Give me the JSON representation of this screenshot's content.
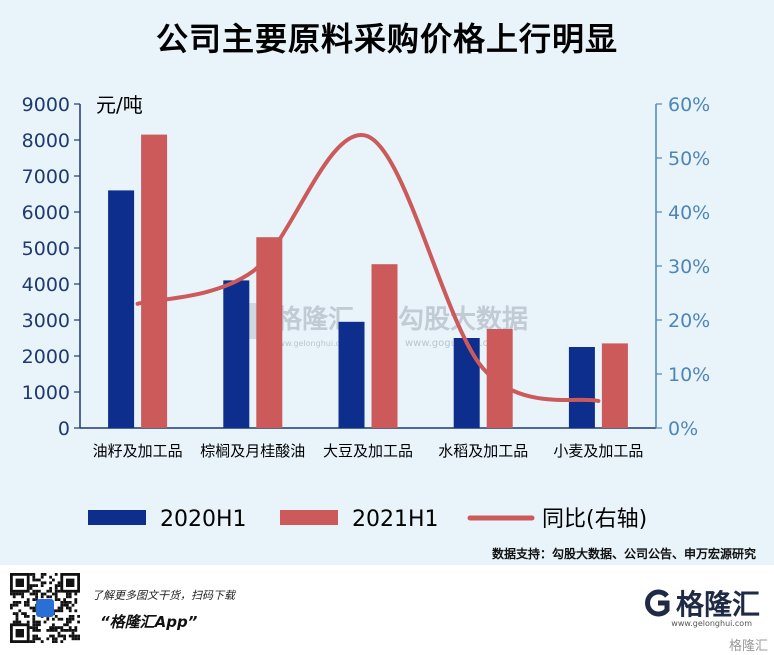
{
  "title": "公司主要原料采购价格上行明显",
  "source": "数据支持：勾股大数据、公司公告、申万宏源研究",
  "watermark": {
    "brand1": "格隆汇",
    "url1": "www.gelonghui.com",
    "brand2": "勾股大数据",
    "url2": "www.gogudata.com"
  },
  "footer": {
    "promo_line": "了解更多图文干货，扫码下载",
    "app_name": "“格隆汇App”",
    "brand_name": "格隆汇",
    "brand_url": "www.gelonghui.com",
    "bottom_watermark": "格隆汇"
  },
  "colors": {
    "bar_2020": "#0d2e8c",
    "bar_2021": "#cc5a5a",
    "line": "#cc5a5a",
    "axis_left": "#1f3a6e",
    "axis_right": "#4f86b8",
    "background": "#e8f4fa"
  },
  "chart_data": {
    "type": "bar",
    "categories": [
      "油籽及加工品",
      "棕榈及月桂酸油",
      "大豆及加工品",
      "水稻及加工品",
      "小麦及加工品"
    ],
    "series": [
      {
        "name": "2020H1",
        "type": "bar",
        "axis": "left",
        "values": [
          6600,
          4100,
          2950,
          2500,
          2250
        ]
      },
      {
        "name": "2021H1",
        "type": "bar",
        "axis": "left",
        "values": [
          8150,
          5300,
          4550,
          2750,
          2350
        ]
      },
      {
        "name": "同比(右轴)",
        "type": "line",
        "axis": "right",
        "values": [
          23,
          29,
          54,
          11,
          5
        ]
      }
    ],
    "ylabel": "元/吨",
    "ylim": [
      0,
      9000
    ],
    "yticks": [
      "0",
      "1000",
      "2000",
      "3000",
      "4000",
      "5000",
      "6000",
      "7000",
      "8000",
      "9000"
    ],
    "y2lim": [
      0,
      60
    ],
    "y2ticks": [
      "0%",
      "10%",
      "20%",
      "30%",
      "40%",
      "50%",
      "60%"
    ],
    "legend_position": "bottom",
    "grid": false
  }
}
